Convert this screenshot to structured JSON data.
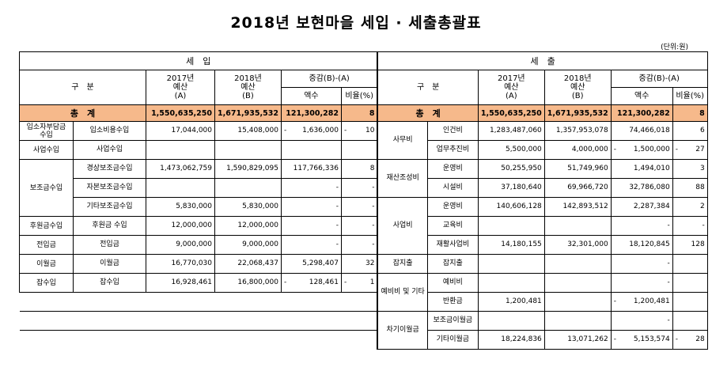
{
  "title": "2018년 보현마을 세입 · 세출총괄표",
  "unit": "(단위:원)",
  "income": {
    "section": "세　입",
    "col_category": "구　분",
    "col_2017": "2017년\n예산\n(A)",
    "col_2018": "2018년\n예산\n(B)",
    "col_change": "증감(B)-(A)",
    "col_amount": "액수",
    "col_ratio": "비율(%)",
    "total_label": "총　계",
    "total_2017": "1,550,635,250",
    "total_2018": "1,671,935,532",
    "total_change": "121,300,282",
    "total_ratio": "8",
    "rows": [
      {
        "group": "입소자부담금\n수입",
        "item": "입소비용수입",
        "v2017": "17,044,000",
        "v2018": "15,408,000",
        "neg": "-",
        "change": "1,636,000",
        "rneg": "-",
        "ratio": "10"
      },
      {
        "group": "사업수입",
        "item": "사업수입",
        "v2017": "",
        "v2018": "",
        "neg": "",
        "change": "",
        "rneg": "",
        "ratio": ""
      },
      {
        "group": "보조금수입",
        "item": "경상보조금수입",
        "v2017": "1,473,062,759",
        "v2018": "1,590,829,095",
        "neg": "",
        "change": "117,766,336",
        "rneg": "",
        "ratio": "8"
      },
      {
        "group": "",
        "item": "자본보조금수입",
        "v2017": "",
        "v2018": "",
        "neg": "",
        "change": "-",
        "rneg": "",
        "ratio": "-"
      },
      {
        "group": "",
        "item": "기타보조금수입",
        "v2017": "5,830,000",
        "v2018": "5,830,000",
        "neg": "",
        "change": "-",
        "rneg": "",
        "ratio": "-"
      },
      {
        "group": "후원금수입",
        "item": "후원금 수입",
        "v2017": "12,000,000",
        "v2018": "12,000,000",
        "neg": "",
        "change": "-",
        "rneg": "",
        "ratio": "-"
      },
      {
        "group": "전입금",
        "item": "전입금",
        "v2017": "9,000,000",
        "v2018": "9,000,000",
        "neg": "",
        "change": "-",
        "rneg": "",
        "ratio": "-"
      },
      {
        "group": "이월금",
        "item": "이월금",
        "v2017": "16,770,030",
        "v2018": "22,068,437",
        "neg": "",
        "change": "5,298,407",
        "rneg": "",
        "ratio": "32"
      },
      {
        "group": "잡수입",
        "item": "잡수입",
        "v2017": "16,928,461",
        "v2018": "16,800,000",
        "neg": "-",
        "change": "128,461",
        "rneg": "-",
        "ratio": "1"
      }
    ]
  },
  "expense": {
    "section": "세　출",
    "col_category": "구　분",
    "col_2017": "2017년\n예산\n(A)",
    "col_2018": "2018년\n예산\n(B)",
    "col_change": "증감(B)-(A)",
    "col_amount": "액수",
    "col_ratio": "비율(%)",
    "total_label": "총　계",
    "total_2017": "1,550,635,250",
    "total_2018": "1,671,935,532",
    "total_change": "121,300,282",
    "total_ratio": "8",
    "groups": {
      "g0": "사무비",
      "g1": "재산조성비",
      "g2": "사업비",
      "g3": "잡지출",
      "g4": "예비비 및 기타",
      "g5": "차기이월금"
    },
    "rows": [
      {
        "item": "인건비",
        "v2017": "1,283,487,060",
        "v2018": "1,357,953,078",
        "neg": "",
        "change": "74,466,018",
        "rneg": "",
        "ratio": "6"
      },
      {
        "item": "업무추진비",
        "v2017": "5,500,000",
        "v2018": "4,000,000",
        "neg": "-",
        "change": "1,500,000",
        "rneg": "-",
        "ratio": "27"
      },
      {
        "item": "운영비",
        "v2017": "50,255,950",
        "v2018": "51,749,960",
        "neg": "",
        "change": "1,494,010",
        "rneg": "",
        "ratio": "3"
      },
      {
        "item": "시설비",
        "v2017": "37,180,640",
        "v2018": "69,966,720",
        "neg": "",
        "change": "32,786,080",
        "rneg": "",
        "ratio": "88"
      },
      {
        "item": "운영비",
        "v2017": "140,606,128",
        "v2018": "142,893,512",
        "neg": "",
        "change": "2,287,384",
        "rneg": "",
        "ratio": "2"
      },
      {
        "item": "교육비",
        "v2017": "",
        "v2018": "",
        "neg": "",
        "change": "-",
        "rneg": "",
        "ratio": "-"
      },
      {
        "item": "재활사업비",
        "v2017": "14,180,155",
        "v2018": "32,301,000",
        "neg": "",
        "change": "18,120,845",
        "rneg": "",
        "ratio": "128"
      },
      {
        "item": "잡지출",
        "v2017": "",
        "v2018": "",
        "neg": "",
        "change": "-",
        "rneg": "",
        "ratio": ""
      },
      {
        "item": "예비비",
        "v2017": "",
        "v2018": "",
        "neg": "",
        "change": "-",
        "rneg": "",
        "ratio": ""
      },
      {
        "item": "반환금",
        "v2017": "1,200,481",
        "v2018": "",
        "neg": "-",
        "change": "1,200,481",
        "rneg": "",
        "ratio": ""
      },
      {
        "item": "보조금이월금",
        "v2017": "",
        "v2018": "",
        "neg": "",
        "change": "-",
        "rneg": "",
        "ratio": ""
      },
      {
        "item": "기타이월금",
        "v2017": "18,224,836",
        "v2018": "13,071,262",
        "neg": "-",
        "change": "5,153,574",
        "rneg": "-",
        "ratio": "28"
      }
    ]
  }
}
